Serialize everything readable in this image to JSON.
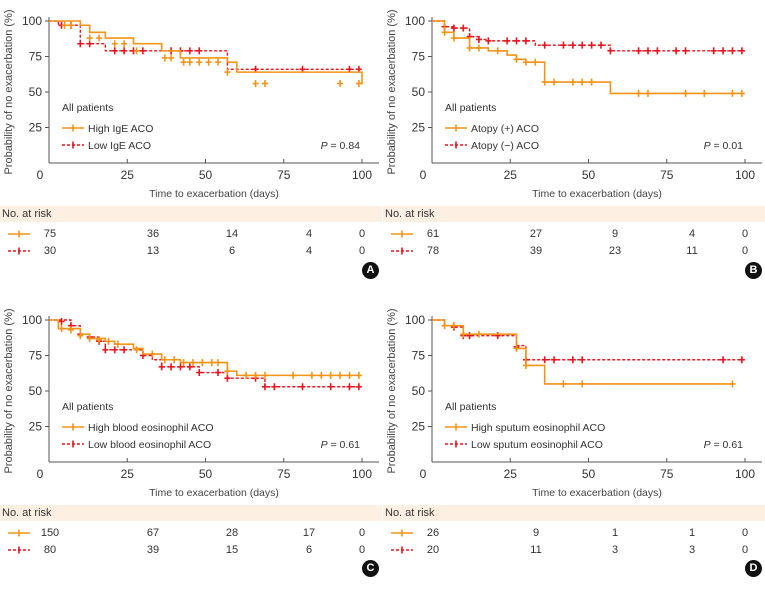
{
  "figure": {
    "colors": {
      "high": "#f39419",
      "low": "#e8141e",
      "axis": "#555555",
      "risk_bg": "#fdf0e3"
    },
    "risk_title": "No. at risk"
  },
  "chart_data": [
    {
      "panel": "A",
      "type": "line",
      "subtype": "kaplan-meier",
      "xlabel": "Time to exacerbation (days)",
      "ylabel": "Probability of no exacerbation (%)",
      "xlim": [
        0,
        100
      ],
      "ylim": [
        0,
        100
      ],
      "xticks": [
        "0",
        "25",
        "50",
        "75",
        "100"
      ],
      "yticks": [
        "25",
        "50",
        "75",
        "100"
      ],
      "legend_title": "All patients",
      "p_label": "P",
      "p_value": "= 0.84",
      "series": [
        {
          "name": "High IgE ACO",
          "style": "solid",
          "steps": [
            [
              0,
              100
            ],
            [
              10,
              97
            ],
            [
              13,
              92
            ],
            [
              18,
              88
            ],
            [
              27,
              84
            ],
            [
              36,
              79
            ],
            [
              42,
              74
            ],
            [
              57,
              71
            ],
            [
              60,
              64
            ],
            [
              100,
              56
            ]
          ],
          "end": 99,
          "censors": [
            [
              5,
              97
            ],
            [
              7,
              97
            ],
            [
              13,
              88
            ],
            [
              16,
              88
            ],
            [
              21,
              84
            ],
            [
              24,
              84
            ],
            [
              28,
              79
            ],
            [
              37,
              74
            ],
            [
              39,
              74
            ],
            [
              43,
              71
            ],
            [
              45,
              71
            ],
            [
              48,
              71
            ],
            [
              51,
              71
            ],
            [
              54,
              71
            ],
            [
              57,
              64
            ],
            [
              66,
              56
            ],
            [
              69,
              56
            ],
            [
              93,
              56
            ],
            [
              99,
              56
            ]
          ]
        },
        {
          "name": "Low IgE ACO",
          "style": "dashed",
          "steps": [
            [
              0,
              100
            ],
            [
              3,
              97
            ],
            [
              10,
              84
            ],
            [
              18,
              79
            ],
            [
              57,
              66
            ]
          ],
          "end": 99,
          "censors": [
            [
              4,
              97
            ],
            [
              7,
              97
            ],
            [
              10,
              84
            ],
            [
              13,
              84
            ],
            [
              21,
              79
            ],
            [
              24,
              79
            ],
            [
              27,
              79
            ],
            [
              30,
              79
            ],
            [
              39,
              79
            ],
            [
              42,
              79
            ],
            [
              45,
              79
            ],
            [
              48,
              79
            ],
            [
              66,
              66
            ],
            [
              81,
              66
            ],
            [
              96,
              66
            ],
            [
              99,
              66
            ]
          ]
        }
      ],
      "risk_table": {
        "rows": [
          [
            "75",
            "36",
            "14",
            "4",
            "0"
          ],
          [
            "30",
            "13",
            "6",
            "4",
            "0"
          ]
        ]
      }
    },
    {
      "panel": "B",
      "type": "line",
      "subtype": "kaplan-meier",
      "xlabel": "Time to exacerbation (days)",
      "ylabel": "Probability of no exacerbation (%)",
      "xlim": [
        0,
        100
      ],
      "ylim": [
        0,
        100
      ],
      "xticks": [
        "0",
        "25",
        "50",
        "75",
        "100"
      ],
      "yticks": [
        "25",
        "50",
        "75",
        "100"
      ],
      "legend_title": "All patients",
      "p_label": "P",
      "p_value": "= 0.01",
      "series": [
        {
          "name": "Atopy (+) ACO",
          "style": "solid",
          "steps": [
            [
              0,
              100
            ],
            [
              4,
              92
            ],
            [
              7,
              88
            ],
            [
              12,
              81
            ],
            [
              18,
              79
            ],
            [
              24,
              76
            ],
            [
              27,
              73
            ],
            [
              30,
              71
            ],
            [
              36,
              57
            ],
            [
              57,
              49
            ]
          ],
          "end": 99,
          "censors": [
            [
              4,
              92
            ],
            [
              7,
              88
            ],
            [
              12,
              81
            ],
            [
              15,
              81
            ],
            [
              21,
              79
            ],
            [
              27,
              73
            ],
            [
              30,
              71
            ],
            [
              33,
              71
            ],
            [
              36,
              57
            ],
            [
              39,
              57
            ],
            [
              45,
              57
            ],
            [
              48,
              57
            ],
            [
              51,
              57
            ],
            [
              66,
              49
            ],
            [
              69,
              49
            ],
            [
              81,
              49
            ],
            [
              87,
              49
            ],
            [
              96,
              49
            ],
            [
              99,
              49
            ]
          ]
        },
        {
          "name": "Atopy (−) ACO",
          "style": "dashed",
          "steps": [
            [
              0,
              100
            ],
            [
              4,
              96
            ],
            [
              7,
              95
            ],
            [
              12,
              89
            ],
            [
              15,
              87
            ],
            [
              18,
              86
            ],
            [
              33,
              83
            ],
            [
              57,
              79
            ]
          ],
          "end": 99,
          "censors": [
            [
              4,
              96
            ],
            [
              7,
              95
            ],
            [
              10,
              95
            ],
            [
              12,
              89
            ],
            [
              15,
              87
            ],
            [
              18,
              86
            ],
            [
              24,
              86
            ],
            [
              27,
              86
            ],
            [
              30,
              86
            ],
            [
              36,
              83
            ],
            [
              42,
              83
            ],
            [
              45,
              83
            ],
            [
              48,
              83
            ],
            [
              51,
              83
            ],
            [
              54,
              83
            ],
            [
              57,
              79
            ],
            [
              66,
              79
            ],
            [
              69,
              79
            ],
            [
              72,
              79
            ],
            [
              78,
              79
            ],
            [
              81,
              79
            ],
            [
              90,
              79
            ],
            [
              93,
              79
            ],
            [
              96,
              79
            ],
            [
              99,
              79
            ]
          ]
        }
      ],
      "risk_table": {
        "rows": [
          [
            "61",
            "27",
            "9",
            "4",
            "0"
          ],
          [
            "78",
            "39",
            "23",
            "11",
            "0"
          ]
        ]
      }
    },
    {
      "panel": "C",
      "type": "line",
      "subtype": "kaplan-meier",
      "xlabel": "Time to exacerbation (days)",
      "ylabel": "Probability of no exacerbation (%)",
      "xlim": [
        0,
        100
      ],
      "ylim": [
        0,
        100
      ],
      "xticks": [
        "0",
        "25",
        "50",
        "75",
        "100"
      ],
      "yticks": [
        "25",
        "50",
        "75",
        "100"
      ],
      "legend_title": "All patients",
      "p_label": "P",
      "p_value": "= 0.61",
      "series": [
        {
          "name": "High blood eosinophil ACO",
          "style": "solid",
          "steps": [
            [
              0,
              100
            ],
            [
              3,
              94
            ],
            [
              10,
              90
            ],
            [
              13,
              87
            ],
            [
              18,
              85
            ],
            [
              21,
              83
            ],
            [
              27,
              80
            ],
            [
              30,
              76
            ],
            [
              36,
              72
            ],
            [
              42,
              70
            ],
            [
              57,
              64
            ],
            [
              60,
              61
            ]
          ],
          "end": 99,
          "censors": [
            [
              4,
              94
            ],
            [
              7,
              93
            ],
            [
              10,
              89
            ],
            [
              13,
              87
            ],
            [
              16,
              86
            ],
            [
              19,
              85
            ],
            [
              22,
              83
            ],
            [
              28,
              79
            ],
            [
              33,
              76
            ],
            [
              37,
              72
            ],
            [
              40,
              72
            ],
            [
              43,
              70
            ],
            [
              46,
              70
            ],
            [
              49,
              70
            ],
            [
              52,
              70
            ],
            [
              54,
              70
            ],
            [
              57,
              64
            ],
            [
              63,
              61
            ],
            [
              66,
              61
            ],
            [
              69,
              61
            ],
            [
              78,
              61
            ],
            [
              84,
              61
            ],
            [
              87,
              61
            ],
            [
              90,
              61
            ],
            [
              93,
              61
            ],
            [
              96,
              61
            ],
            [
              99,
              61
            ]
          ]
        },
        {
          "name": "Low blood eosinophil ACO",
          "style": "dashed",
          "steps": [
            [
              0,
              100
            ],
            [
              7,
              96
            ],
            [
              10,
              90
            ],
            [
              13,
              88
            ],
            [
              16,
              85
            ],
            [
              18,
              79
            ],
            [
              30,
              75
            ],
            [
              33,
              72
            ],
            [
              36,
              67
            ],
            [
              48,
              63
            ],
            [
              57,
              59
            ],
            [
              69,
              53
            ]
          ],
          "end": 99,
          "censors": [
            [
              4,
              99
            ],
            [
              7,
              96
            ],
            [
              10,
              90
            ],
            [
              13,
              88
            ],
            [
              16,
              85
            ],
            [
              18,
              79
            ],
            [
              21,
              79
            ],
            [
              24,
              79
            ],
            [
              30,
              75
            ],
            [
              36,
              67
            ],
            [
              39,
              67
            ],
            [
              42,
              67
            ],
            [
              45,
              67
            ],
            [
              48,
              63
            ],
            [
              54,
              63
            ],
            [
              57,
              59
            ],
            [
              66,
              59
            ],
            [
              69,
              53
            ],
            [
              72,
              53
            ],
            [
              81,
              53
            ],
            [
              90,
              53
            ],
            [
              96,
              53
            ],
            [
              99,
              53
            ]
          ]
        }
      ],
      "risk_table": {
        "rows": [
          [
            "150",
            "67",
            "28",
            "17",
            "0"
          ],
          [
            "80",
            "39",
            "15",
            "6",
            "0"
          ]
        ]
      }
    },
    {
      "panel": "D",
      "type": "line",
      "subtype": "kaplan-meier",
      "xlabel": "Time to exacerbation (days)",
      "ylabel": "Probability of no exacerbation (%)",
      "xlim": [
        0,
        100
      ],
      "ylim": [
        0,
        100
      ],
      "xticks": [
        "0",
        "25",
        "50",
        "75",
        "100"
      ],
      "yticks": [
        "25",
        "50",
        "75",
        "100"
      ],
      "legend_title": "All patients",
      "p_label": "P",
      "p_value": "= 0.61",
      "series": [
        {
          "name": "High sputum eosinophil ACO",
          "style": "solid",
          "steps": [
            [
              0,
              100
            ],
            [
              4,
              96
            ],
            [
              10,
              90
            ],
            [
              27,
              80
            ],
            [
              30,
              68
            ],
            [
              36,
              55
            ]
          ],
          "end": 96,
          "censors": [
            [
              4,
              96
            ],
            [
              7,
              96
            ],
            [
              10,
              90
            ],
            [
              15,
              90
            ],
            [
              27,
              80
            ],
            [
              30,
              68
            ],
            [
              42,
              55
            ],
            [
              48,
              55
            ],
            [
              96,
              55
            ]
          ]
        },
        {
          "name": "Low sputum eosinophil ACO",
          "style": "dashed",
          "steps": [
            [
              0,
              100
            ],
            [
              4,
              96
            ],
            [
              7,
              95
            ],
            [
              10,
              89
            ],
            [
              27,
              82
            ],
            [
              30,
              72
            ]
          ],
          "end": 99,
          "censors": [
            [
              7,
              95
            ],
            [
              10,
              89
            ],
            [
              12,
              89
            ],
            [
              21,
              89
            ],
            [
              27,
              81
            ],
            [
              30,
              72
            ],
            [
              36,
              72
            ],
            [
              39,
              72
            ],
            [
              45,
              72
            ],
            [
              48,
              72
            ],
            [
              93,
              72
            ],
            [
              99,
              72
            ]
          ]
        }
      ],
      "risk_table": {
        "rows": [
          [
            "26",
            "9",
            "1",
            "1",
            "0"
          ],
          [
            "20",
            "11",
            "3",
            "3",
            "0"
          ]
        ]
      }
    }
  ]
}
